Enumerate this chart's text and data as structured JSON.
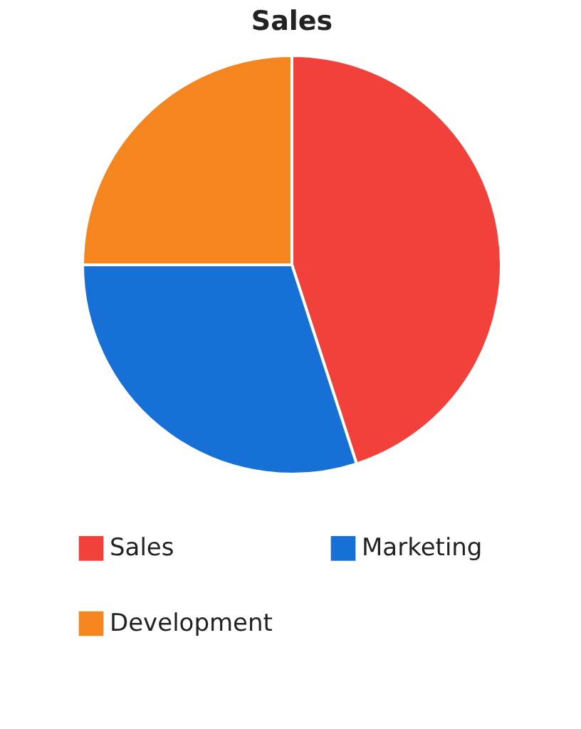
{
  "chart_data": {
    "type": "pie",
    "title": "Sales",
    "categories": [
      "Sales",
      "Marketing",
      "Development"
    ],
    "values": [
      45,
      30,
      25
    ],
    "colors": [
      "#f2413a",
      "#1670d6",
      "#f5861f"
    ],
    "legend": "bottom"
  }
}
